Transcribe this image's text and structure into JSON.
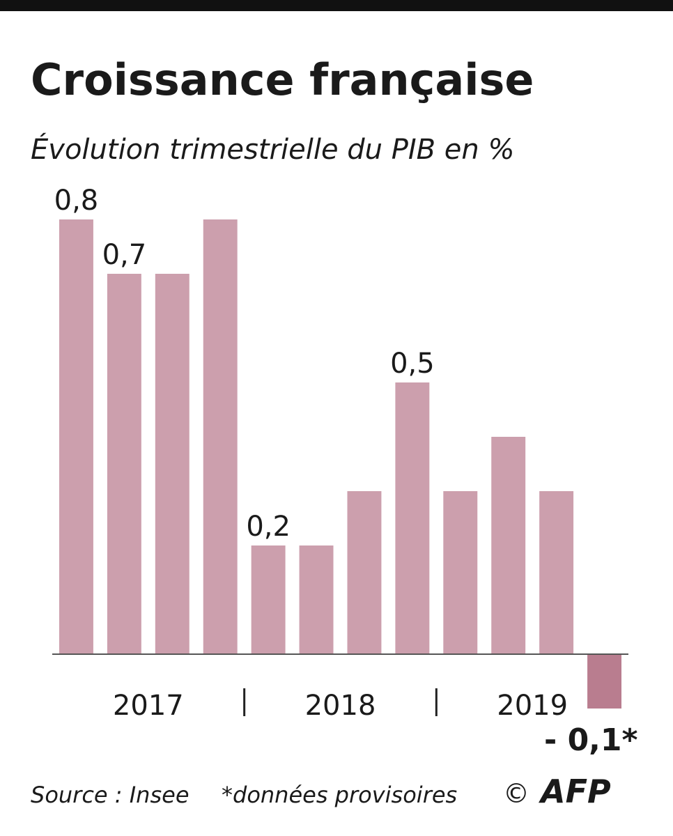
{
  "chart_data": {
    "type": "bar",
    "title": "Croissance française",
    "subtitle": "Évolution trimestrielle du PIB en %",
    "categories": [
      null,
      null,
      null,
      null,
      null,
      null,
      null,
      null,
      null,
      null,
      null,
      null
    ],
    "groups": [
      "2017",
      "2018",
      "2019"
    ],
    "values": [
      0.8,
      0.7,
      0.7,
      0.8,
      0.2,
      0.2,
      0.3,
      0.5,
      0.3,
      0.4,
      0.3,
      -0.1
    ],
    "value_labels": [
      "0,8",
      "0,7",
      null,
      null,
      "0,2",
      null,
      null,
      "0,5",
      null,
      null,
      null,
      "- 0,1*"
    ],
    "color": "#cc9fad",
    "negative_color": "#b97d8f",
    "ylim": [
      -0.1,
      0.8
    ],
    "source": "Source : Insee",
    "note": "*données provisoires",
    "copyright": "©",
    "credit": "AFP"
  }
}
